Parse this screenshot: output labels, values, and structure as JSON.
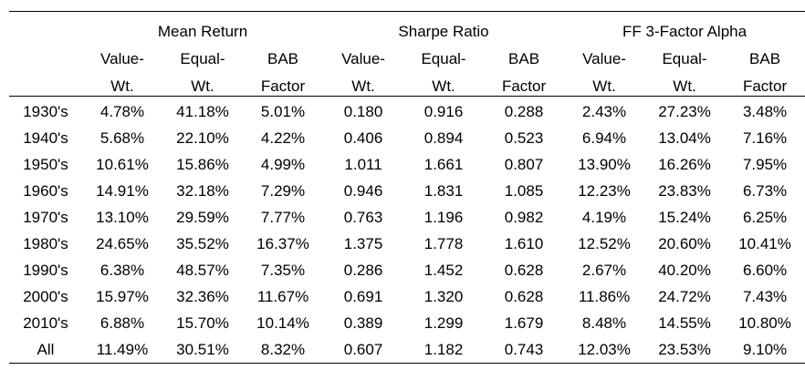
{
  "table": {
    "groups": [
      "Mean Return",
      "Sharpe Ratio",
      "FF 3-Factor Alpha"
    ],
    "sub_line1": [
      "Value-",
      "Equal-",
      "BAB",
      "Value-",
      "Equal-",
      "BAB",
      "Value-",
      "Equal-",
      "BAB"
    ],
    "sub_line2": [
      "Wt.",
      "Wt.",
      "Factor",
      "Wt.",
      "Wt.",
      "Factor",
      "Wt.",
      "Wt.",
      "Factor"
    ],
    "rows": [
      {
        "label": "1930's",
        "values": [
          "4.78%",
          "41.18%",
          "5.01%",
          "0.180",
          "0.916",
          "0.288",
          "2.43%",
          "27.23%",
          "3.48%"
        ]
      },
      {
        "label": "1940's",
        "values": [
          "5.68%",
          "22.10%",
          "4.22%",
          "0.406",
          "0.894",
          "0.523",
          "6.94%",
          "13.04%",
          "7.16%"
        ]
      },
      {
        "label": "1950's",
        "values": [
          "10.61%",
          "15.86%",
          "4.99%",
          "1.011",
          "1.661",
          "0.807",
          "13.90%",
          "16.26%",
          "7.95%"
        ]
      },
      {
        "label": "1960's",
        "values": [
          "14.91%",
          "32.18%",
          "7.29%",
          "0.946",
          "1.831",
          "1.085",
          "12.23%",
          "23.83%",
          "6.73%"
        ]
      },
      {
        "label": "1970's",
        "values": [
          "13.10%",
          "29.59%",
          "7.77%",
          "0.763",
          "1.196",
          "0.982",
          "4.19%",
          "15.24%",
          "6.25%"
        ]
      },
      {
        "label": "1980's",
        "values": [
          "24.65%",
          "35.52%",
          "16.37%",
          "1.375",
          "1.778",
          "1.610",
          "12.52%",
          "20.60%",
          "10.41%"
        ]
      },
      {
        "label": "1990's",
        "values": [
          "6.38%",
          "48.57%",
          "7.35%",
          "0.286",
          "1.452",
          "0.628",
          "2.67%",
          "40.20%",
          "6.60%"
        ]
      },
      {
        "label": "2000's",
        "values": [
          "15.97%",
          "32.36%",
          "11.67%",
          "0.691",
          "1.320",
          "0.628",
          "11.86%",
          "24.72%",
          "7.43%"
        ]
      },
      {
        "label": "2010's",
        "values": [
          "6.88%",
          "15.70%",
          "10.14%",
          "0.389",
          "1.299",
          "1.679",
          "8.48%",
          "14.55%",
          "10.80%"
        ]
      },
      {
        "label": "All",
        "values": [
          "11.49%",
          "30.51%",
          "8.32%",
          "0.607",
          "1.182",
          "0.743",
          "12.03%",
          "23.53%",
          "9.10%"
        ]
      }
    ]
  }
}
